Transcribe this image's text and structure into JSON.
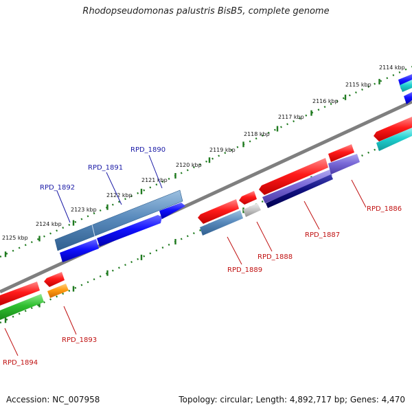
{
  "title": "Rhodopseudomonas palustris BisB5, complete genome",
  "footer": {
    "accession": "Accession: NC_007958",
    "summary": "Topology: circular; Length: 4,892,717 bp; Genes: 4,470"
  },
  "colors": {
    "backbone": "#7f7f7f",
    "tick": "#1f7a1f",
    "label_blue": "#1a1aa6",
    "label_red": "#c01010"
  },
  "scale_labels": [
    "2114 kbp",
    "2115 kbp",
    "2116 kbp",
    "2117 kbp",
    "2118 kbp",
    "2119 kbp",
    "2120 kbp",
    "2121 kbp",
    "2122 kbp",
    "2123 kbp",
    "2124 kbp",
    "2125 kbp"
  ],
  "gene_labels": [
    "RPD_1890",
    "RPD_1891",
    "RPD_1892",
    "RPD_1886",
    "RPD_1887",
    "RPD_1888",
    "RPD_1889",
    "RPD_1893",
    "RPD_1894"
  ]
}
